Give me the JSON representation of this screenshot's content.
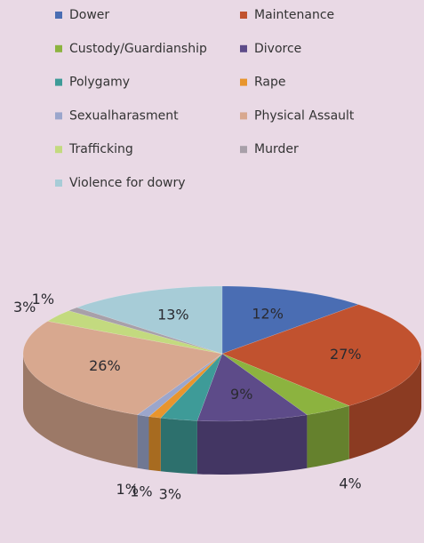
{
  "chart_data": {
    "type": "pie3d",
    "categories": [
      "Dower",
      "Maintenance",
      "Custody/Guardianship",
      "Divorce",
      "Polygamy",
      "Rape",
      "Sexualharasment",
      "Physical Assault",
      "Trafficking",
      "Murder",
      "Violence for dowry"
    ],
    "values": [
      12,
      27,
      4,
      9,
      3,
      1,
      1,
      26,
      3,
      1,
      13
    ],
    "value_labels": [
      "12%",
      "27%",
      "4%",
      "9%",
      "3%",
      "1%",
      "1%",
      "26%",
      "3%",
      "1%",
      "13%"
    ],
    "colors": [
      "#4a6db3",
      "#c1522f",
      "#8cb33f",
      "#5d4b89",
      "#3e9b98",
      "#e8952d",
      "#9ba6cc",
      "#d8a88f",
      "#c3da7f",
      "#a8a0a9",
      "#a7ccd7"
    ],
    "legend": "top"
  }
}
